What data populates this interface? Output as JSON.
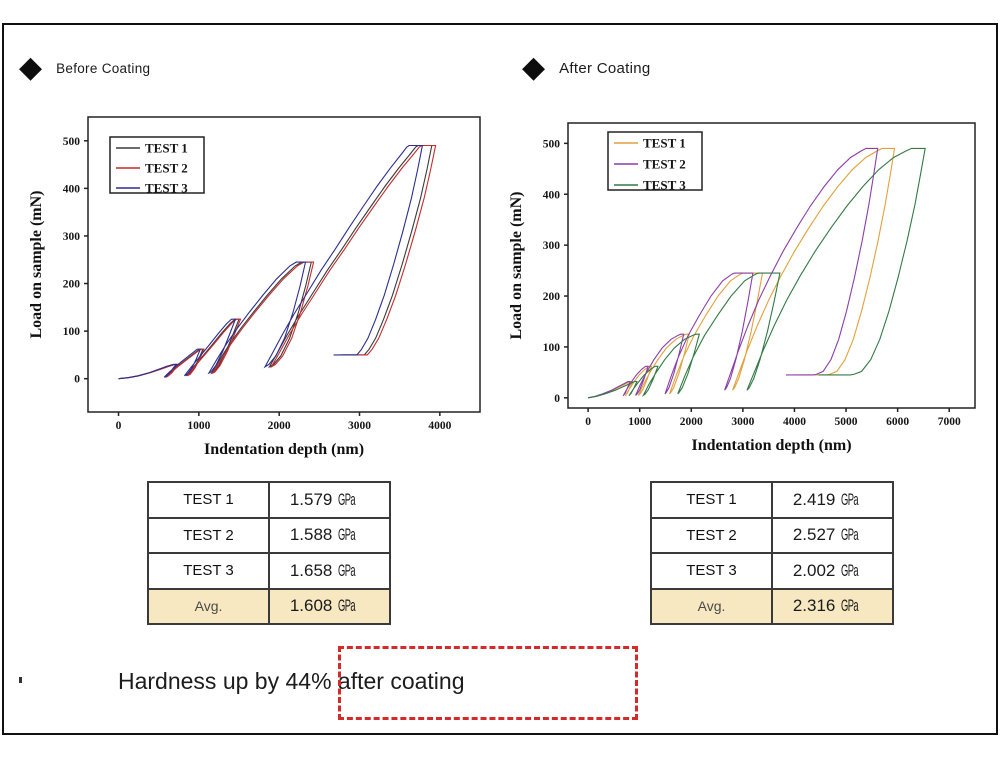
{
  "header": {
    "left": {
      "label": "Before Coating",
      "icon": "diamond-icon"
    },
    "right": {
      "label": "After Coating",
      "icon": "diamond-icon"
    }
  },
  "chart_data": [
    {
      "id": "before",
      "type": "line",
      "title": "Before Coating",
      "xlabel": "Indentation depth (nm)",
      "ylabel": "Load on sample (mN)",
      "xlim": [
        -380,
        4500
      ],
      "ylim": [
        -70,
        550
      ],
      "xticks": [
        0,
        1000,
        2000,
        3000,
        4000
      ],
      "yticks": [
        0,
        100,
        200,
        300,
        400,
        500
      ],
      "grid": false,
      "legend_position": "top-left",
      "series": [
        {
          "name": "TEST 1",
          "color": "#3a3a3a",
          "scale": 1.0
        },
        {
          "name": "TEST 2",
          "color": "#c22d2d",
          "scale": 1.012
        },
        {
          "name": "TEST 3",
          "color": "#2d2d90",
          "scale": 0.97
        }
      ],
      "base_points": [
        [
          0,
          0
        ],
        [
          120,
          2
        ],
        [
          250,
          6
        ],
        [
          400,
          13
        ],
        [
          520,
          20
        ],
        [
          620,
          26
        ],
        [
          700,
          30
        ],
        [
          740,
          30
        ],
        [
          700,
          22
        ],
        [
          660,
          13
        ],
        [
          615,
          6
        ],
        [
          585,
          3
        ],
        [
          640,
          12
        ],
        [
          720,
          24
        ],
        [
          810,
          36
        ],
        [
          900,
          48
        ],
        [
          980,
          58
        ],
        [
          1010,
          62
        ],
        [
          1050,
          62
        ],
        [
          1000,
          42
        ],
        [
          940,
          22
        ],
        [
          880,
          9
        ],
        [
          845,
          6
        ],
        [
          930,
          24
        ],
        [
          1040,
          46
        ],
        [
          1160,
          70
        ],
        [
          1280,
          95
        ],
        [
          1390,
          116
        ],
        [
          1450,
          125
        ],
        [
          1500,
          125
        ],
        [
          1430,
          95
        ],
        [
          1340,
          58
        ],
        [
          1250,
          28
        ],
        [
          1185,
          14
        ],
        [
          1160,
          12
        ],
        [
          1260,
          40
        ],
        [
          1380,
          72
        ],
        [
          1520,
          105
        ],
        [
          1680,
          140
        ],
        [
          1850,
          175
        ],
        [
          2030,
          210
        ],
        [
          2200,
          237
        ],
        [
          2280,
          245
        ],
        [
          2400,
          245
        ],
        [
          2330,
          195
        ],
        [
          2240,
          140
        ],
        [
          2130,
          85
        ],
        [
          2020,
          48
        ],
        [
          1930,
          30
        ],
        [
          1880,
          25
        ],
        [
          1980,
          55
        ],
        [
          2100,
          92
        ],
        [
          2250,
          135
        ],
        [
          2420,
          180
        ],
        [
          2600,
          228
        ],
        [
          2780,
          272
        ],
        [
          2960,
          318
        ],
        [
          3140,
          362
        ],
        [
          3320,
          405
        ],
        [
          3490,
          443
        ],
        [
          3620,
          470
        ],
        [
          3700,
          487
        ],
        [
          3730,
          490
        ],
        [
          3900,
          490
        ],
        [
          3840,
          440
        ],
        [
          3760,
          380
        ],
        [
          3650,
          310
        ],
        [
          3530,
          240
        ],
        [
          3410,
          175
        ],
        [
          3300,
          125
        ],
        [
          3200,
          85
        ],
        [
          3120,
          62
        ],
        [
          3070,
          52
        ],
        [
          3060,
          50
        ],
        [
          2900,
          50
        ],
        [
          2760,
          50
        ]
      ]
    },
    {
      "id": "after",
      "type": "line",
      "title": "After Coating",
      "xlabel": "Indentation depth (nm)",
      "ylabel": "Load on sample (mN)",
      "xlim": [
        -390,
        7500
      ],
      "ylim": [
        -20,
        540
      ],
      "xticks": [
        0,
        1000,
        2000,
        3000,
        4000,
        5000,
        6000,
        7000
      ],
      "yticks": [
        0,
        100,
        200,
        300,
        400,
        500
      ],
      "grid": false,
      "legend_position": "top-left",
      "series": [
        {
          "name": "TEST 1",
          "color": "#E2A13C",
          "scale": 1.0
        },
        {
          "name": "TEST 2",
          "color": "#8C3FA8",
          "scale": 0.945
        },
        {
          "name": "TEST 3",
          "color": "#337A44",
          "scale": 1.1
        }
      ],
      "base_points": [
        [
          0,
          0
        ],
        [
          150,
          3
        ],
        [
          300,
          8
        ],
        [
          480,
          15
        ],
        [
          620,
          22
        ],
        [
          740,
          28
        ],
        [
          820,
          32
        ],
        [
          860,
          32
        ],
        [
          810,
          20
        ],
        [
          760,
          9
        ],
        [
          720,
          4
        ],
        [
          790,
          16
        ],
        [
          880,
          30
        ],
        [
          990,
          45
        ],
        [
          1100,
          56
        ],
        [
          1180,
          62
        ],
        [
          1230,
          62
        ],
        [
          1150,
          38
        ],
        [
          1060,
          16
        ],
        [
          1000,
          7
        ],
        [
          975,
          5
        ],
        [
          1070,
          26
        ],
        [
          1200,
          50
        ],
        [
          1350,
          75
        ],
        [
          1520,
          98
        ],
        [
          1700,
          115
        ],
        [
          1850,
          123
        ],
        [
          1900,
          125
        ],
        [
          1960,
          125
        ],
        [
          1870,
          88
        ],
        [
          1760,
          48
        ],
        [
          1660,
          20
        ],
        [
          1600,
          10
        ],
        [
          1580,
          8
        ],
        [
          1700,
          42
        ],
        [
          1850,
          80
        ],
        [
          2050,
          122
        ],
        [
          2280,
          162
        ],
        [
          2520,
          200
        ],
        [
          2760,
          230
        ],
        [
          2950,
          243
        ],
        [
          3000,
          245
        ],
        [
          3380,
          245
        ],
        [
          3280,
          190
        ],
        [
          3160,
          130
        ],
        [
          3030,
          75
        ],
        [
          2920,
          38
        ],
        [
          2840,
          20
        ],
        [
          2800,
          15
        ],
        [
          2920,
          48
        ],
        [
          3080,
          92
        ],
        [
          3280,
          142
        ],
        [
          3500,
          192
        ],
        [
          3740,
          240
        ],
        [
          4000,
          288
        ],
        [
          4280,
          334
        ],
        [
          4560,
          377
        ],
        [
          4840,
          415
        ],
        [
          5120,
          448
        ],
        [
          5380,
          472
        ],
        [
          5600,
          485
        ],
        [
          5700,
          490
        ],
        [
          5940,
          490
        ],
        [
          5860,
          440
        ],
        [
          5760,
          380
        ],
        [
          5620,
          308
        ],
        [
          5460,
          235
        ],
        [
          5300,
          170
        ],
        [
          5140,
          115
        ],
        [
          4980,
          75
        ],
        [
          4820,
          52
        ],
        [
          4680,
          46
        ],
        [
          4620,
          45
        ],
        [
          4350,
          45
        ],
        [
          4060,
          45
        ]
      ]
    }
  ],
  "tables": [
    {
      "id": "before",
      "unit": "GPa",
      "rows": [
        {
          "label": "TEST 1",
          "value": "1.579"
        },
        {
          "label": "TEST 2",
          "value": "1.588"
        },
        {
          "label": "TEST 3",
          "value": "1.658"
        },
        {
          "label": "Avg.",
          "value": "1.608",
          "is_avg": true
        }
      ]
    },
    {
      "id": "after",
      "unit": "GPa",
      "rows": [
        {
          "label": "TEST 1",
          "value": "2.419"
        },
        {
          "label": "TEST 2",
          "value": "2.527"
        },
        {
          "label": "TEST 3",
          "value": "2.002"
        },
        {
          "label": "Avg.",
          "value": "2.316",
          "is_avg": true
        }
      ]
    }
  ],
  "callout": {
    "text": "Hardness up by 44% after coating",
    "box_color": "#d42a2a"
  }
}
